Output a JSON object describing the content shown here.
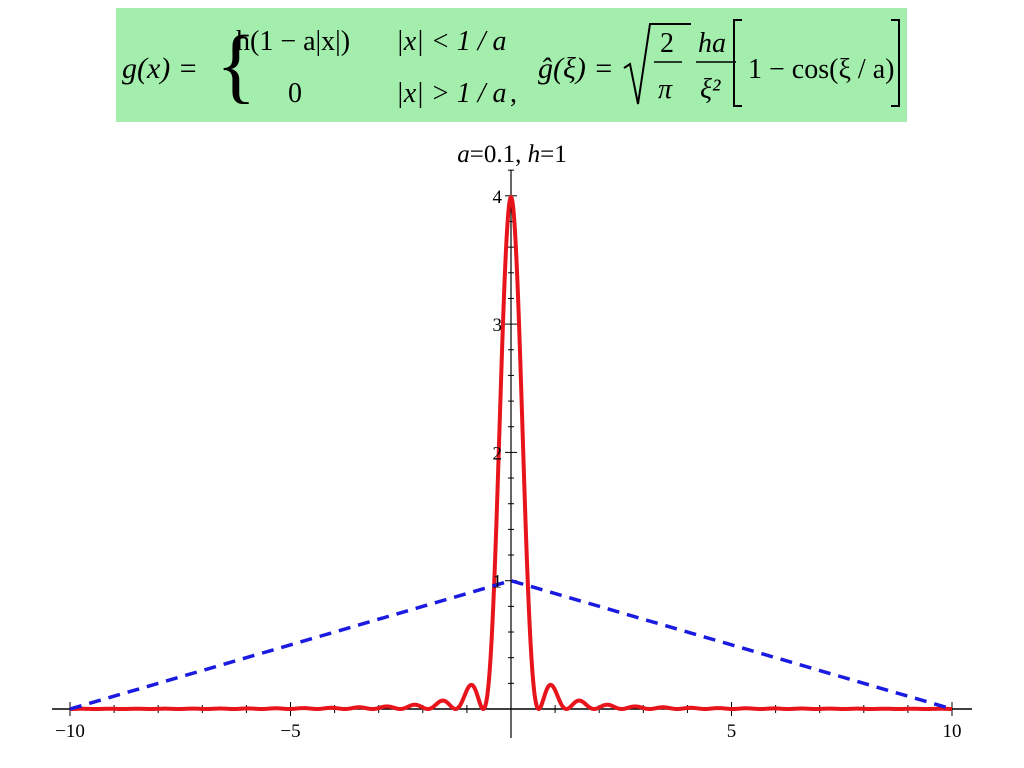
{
  "formula": {
    "lhs": "g(x) =",
    "case1_expr": "h(1 − a|x|)",
    "case1_cond": "|x| < 1 / a",
    "case2_expr": "0",
    "case2_cond": "|x| > 1 / a",
    "separator": ",",
    "rhs_lhs": "ĝ(ξ) =",
    "sqrt_num": "2",
    "sqrt_den": "π",
    "frac_num": "ha",
    "frac_den": "ξ²",
    "bracket_expr": "1 − cos(ξ / a)"
  },
  "colors": {
    "formula_bg": "#a3eeac",
    "transform_curve": "#e8141b",
    "function_curve": "#1a1ae0",
    "axis": "#000000"
  },
  "chart_data": {
    "type": "line",
    "title": "a=0.1, h=1",
    "title_parts": [
      {
        "text": "a",
        "italic": true
      },
      {
        "text": "=0.1, ",
        "italic": false
      },
      {
        "text": "h",
        "italic": true
      },
      {
        "text": "=1",
        "italic": false
      }
    ],
    "xlim": [
      -10,
      10
    ],
    "ylim": [
      0,
      4.25
    ],
    "x_ticks": [
      {
        "value": -10,
        "label": "−10"
      },
      {
        "value": -5,
        "label": "−5"
      },
      {
        "value": 5,
        "label": "5"
      },
      {
        "value": 10,
        "label": "10"
      }
    ],
    "y_ticks": [
      {
        "value": 1,
        "label": "1"
      },
      {
        "value": 2,
        "label": "2"
      },
      {
        "value": 3,
        "label": "3"
      },
      {
        "value": 4,
        "label": "4"
      }
    ],
    "grid": false,
    "series": [
      {
        "style": "solid",
        "color": "#e8141b",
        "formula": "sqrt(2/pi) * h*a / xi^2 * (1 - cos(xi/a)), a=0.1, h=1",
        "peak": {
          "x": 0,
          "y": 3.99
        }
      },
      {
        "style": "dashed",
        "color": "#1a1ae0",
        "x": [
          -10,
          0,
          10
        ],
        "y": [
          0,
          1,
          0
        ]
      }
    ]
  }
}
